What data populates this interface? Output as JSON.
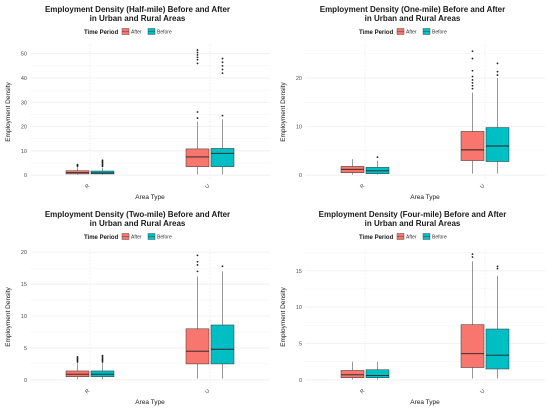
{
  "colors": {
    "After": "#F8766D",
    "Before": "#00BFC4",
    "grid": "#ebebeb"
  },
  "legend": {
    "title": "Time Period",
    "entries": [
      "After",
      "Before"
    ]
  },
  "chart_data": [
    {
      "type": "boxplot",
      "title": "Employment Density (Half-mile) Before and After",
      "title2": "in Urban and Rural Areas",
      "xlabel": "Area Type",
      "ylabel": "Employment Density",
      "categories": [
        "R",
        "U"
      ],
      "ylim": [
        -2,
        54
      ],
      "yticks": [
        0,
        10,
        20,
        30,
        40,
        50
      ],
      "grid": true,
      "legend_position": "top",
      "series": [
        {
          "name": "After",
          "boxes": [
            {
              "min": 0.2,
              "q1": 0.5,
              "median": 1.0,
              "q3": 1.8,
              "max": 3.3,
              "outliers": [
                3.7,
                4.0,
                4.3
              ]
            },
            {
              "min": 0.3,
              "q1": 3.5,
              "median": 7.5,
              "q3": 10.8,
              "max": 22.0,
              "outliers": [
                23.5,
                26.0,
                46.0,
                47.5,
                48.5,
                49.5,
                50.5,
                51.5
              ]
            }
          ]
        },
        {
          "name": "Before",
          "boxes": [
            {
              "min": 0.2,
              "q1": 0.5,
              "median": 0.9,
              "q3": 1.7,
              "max": 3.0,
              "outliers": [
                3.6,
                4.1,
                4.6,
                5.1,
                5.6,
                6.1
              ]
            },
            {
              "min": 0.3,
              "q1": 3.5,
              "median": 9.0,
              "q3": 11.0,
              "max": 23.0,
              "outliers": [
                24.5,
                42.0,
                43.5,
                45.0,
                46.5,
                48.0
              ]
            }
          ]
        }
      ]
    },
    {
      "type": "boxplot",
      "title": "Employment Density (One-mile) Before and After",
      "title2": "in Urban and Rural Areas",
      "xlabel": "Area Type",
      "ylabel": "Employment Density",
      "categories": [
        "R",
        "U"
      ],
      "ylim": [
        -1,
        27
      ],
      "yticks": [
        0,
        10,
        20
      ],
      "grid": true,
      "legend_position": "top",
      "series": [
        {
          "name": "After",
          "boxes": [
            {
              "min": 0.1,
              "q1": 0.5,
              "median": 1.2,
              "q3": 1.8,
              "max": 3.3,
              "outliers": []
            },
            {
              "min": 0.3,
              "q1": 3.0,
              "median": 5.2,
              "q3": 9.0,
              "max": 17.0,
              "outliers": [
                17.8,
                18.4,
                19.0,
                19.6,
                20.3,
                21.5,
                24.0,
                25.5
              ]
            }
          ]
        },
        {
          "name": "Before",
          "boxes": [
            {
              "min": 0.1,
              "q1": 0.3,
              "median": 0.9,
              "q3": 1.6,
              "max": 3.0,
              "outliers": [
                3.7
              ]
            },
            {
              "min": 0.3,
              "q1": 2.8,
              "median": 6.0,
              "q3": 9.8,
              "max": 20.0,
              "outliers": [
                20.6,
                21.3,
                23.0
              ]
            }
          ]
        }
      ]
    },
    {
      "type": "boxplot",
      "title": "Employment Density (Two-mile) Before and After",
      "title2": "in Urban and Rural Areas",
      "xlabel": "Area Type",
      "ylabel": "Employment Density",
      "categories": [
        "R",
        "U"
      ],
      "ylim": [
        -0.8,
        20.5
      ],
      "yticks": [
        0,
        5,
        10,
        15,
        20
      ],
      "grid": true,
      "legend_position": "top",
      "series": [
        {
          "name": "After",
          "boxes": [
            {
              "min": 0.1,
              "q1": 0.5,
              "median": 0.9,
              "q3": 1.4,
              "max": 2.6,
              "outliers": [
                2.8,
                3.0,
                3.2,
                3.4,
                3.6
              ]
            },
            {
              "min": 0.2,
              "q1": 2.5,
              "median": 4.5,
              "q3": 8.0,
              "max": 16.2,
              "outliers": [
                17.0,
                18.0,
                18.5,
                19.5
              ]
            }
          ]
        },
        {
          "name": "Before",
          "boxes": [
            {
              "min": 0.1,
              "q1": 0.5,
              "median": 0.9,
              "q3": 1.4,
              "max": 2.6,
              "outliers": [
                2.8,
                3.0,
                3.2,
                3.4,
                3.6,
                3.8
              ]
            },
            {
              "min": 0.2,
              "q1": 2.5,
              "median": 4.8,
              "q3": 8.6,
              "max": 17.0,
              "outliers": [
                17.8
              ]
            }
          ]
        }
      ]
    },
    {
      "type": "boxplot",
      "title": "Employment Density (Four-mile) Before and After",
      "title2": "in Urban and Rural Areas",
      "xlabel": "Area Type",
      "ylabel": "Employment Density",
      "categories": [
        "R",
        "U"
      ],
      "ylim": [
        -0.7,
        18
      ],
      "yticks": [
        0,
        5,
        10,
        15
      ],
      "grid": true,
      "legend_position": "top",
      "series": [
        {
          "name": "After",
          "boxes": [
            {
              "min": 0.05,
              "q1": 0.3,
              "median": 0.7,
              "q3": 1.3,
              "max": 2.5,
              "outliers": []
            },
            {
              "min": 0.2,
              "q1": 1.7,
              "median": 3.6,
              "q3": 7.6,
              "max": 16.3,
              "outliers": [
                16.9,
                17.3
              ]
            }
          ]
        },
        {
          "name": "Before",
          "boxes": [
            {
              "min": 0.05,
              "q1": 0.3,
              "median": 0.6,
              "q3": 1.4,
              "max": 2.5,
              "outliers": []
            },
            {
              "min": 0.2,
              "q1": 1.5,
              "median": 3.4,
              "q3": 7.0,
              "max": 14.3,
              "outliers": [
                15.3,
                15.6
              ]
            }
          ]
        }
      ]
    }
  ]
}
